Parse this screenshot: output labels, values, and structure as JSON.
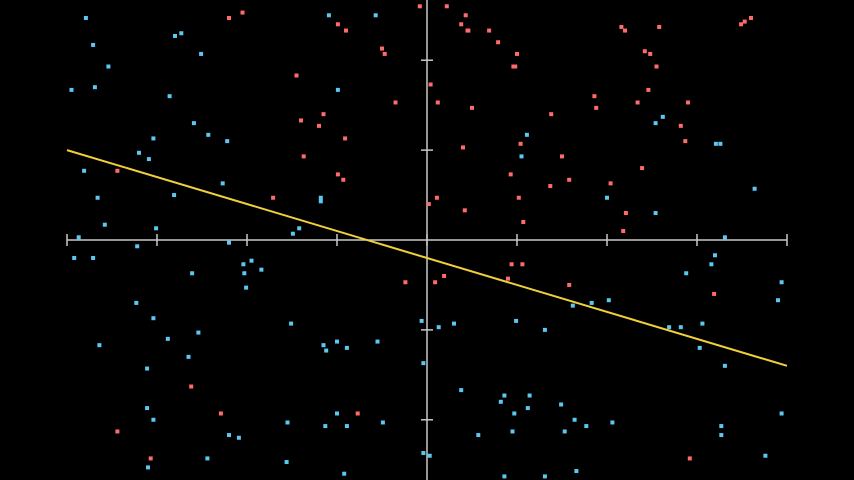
{
  "chart_data": {
    "type": "scatter",
    "xlim": [
      -4,
      4
    ],
    "ylim": [
      -2.67,
      2.67
    ],
    "x_ticks": [
      -4,
      -3,
      -2,
      -1,
      0,
      1,
      2,
      3,
      4
    ],
    "y_ticks": [
      -2,
      -1,
      1,
      2
    ],
    "grid": false,
    "colors": {
      "background": "#000000",
      "axis": "#c8c8c8",
      "class_a": "#ff6b6b",
      "class_b": "#5bc8f0",
      "line": "#f2d03b"
    },
    "decision_line": {
      "x": [
        -4.0,
        4.0
      ],
      "y": [
        1.0,
        -1.4
      ]
    },
    "series": [
      {
        "points": [
          [
            -2.2,
            2.47
          ],
          [
            -2.05,
            2.53
          ],
          [
            -0.99,
            2.4
          ],
          [
            -0.9,
            2.33
          ],
          [
            -0.5,
            2.13
          ],
          [
            -0.47,
            2.07
          ],
          [
            -0.08,
            2.6
          ],
          [
            0.22,
            2.6
          ],
          [
            0.43,
            2.5
          ],
          [
            0.46,
            2.33
          ],
          [
            0.38,
            2.4
          ],
          [
            0.45,
            2.33
          ],
          [
            0.69,
            2.33
          ],
          [
            0.79,
            2.2
          ],
          [
            1.0,
            2.07
          ],
          [
            0.98,
            1.93
          ],
          [
            0.96,
            1.93
          ],
          [
            2.16,
            2.37
          ],
          [
            2.2,
            2.33
          ],
          [
            2.58,
            2.37
          ],
          [
            2.48,
            2.07
          ],
          [
            2.42,
            2.1
          ],
          [
            2.55,
            1.93
          ],
          [
            2.46,
            1.67
          ],
          [
            2.34,
            1.53
          ],
          [
            3.6,
            2.47
          ],
          [
            3.53,
            2.43
          ],
          [
            3.49,
            2.4
          ],
          [
            -1.45,
            1.83
          ],
          [
            -0.35,
            1.53
          ],
          [
            0.04,
            1.73
          ],
          [
            0.12,
            1.53
          ],
          [
            0.5,
            1.47
          ],
          [
            1.38,
            1.4
          ],
          [
            1.88,
            1.47
          ],
          [
            1.86,
            1.6
          ],
          [
            2.9,
            1.53
          ],
          [
            2.82,
            1.27
          ],
          [
            2.87,
            1.1
          ],
          [
            -1.4,
            1.33
          ],
          [
            -1.2,
            1.27
          ],
          [
            -1.15,
            1.4
          ],
          [
            -0.91,
            1.13
          ],
          [
            0.4,
            1.03
          ],
          [
            1.04,
            1.07
          ],
          [
            1.5,
            0.93
          ],
          [
            -1.37,
            0.93
          ],
          [
            -0.93,
            0.67
          ],
          [
            -0.99,
            0.73
          ],
          [
            -1.71,
            0.47
          ],
          [
            -3.44,
            0.77
          ],
          [
            0.93,
            0.73
          ],
          [
            1.37,
            0.6
          ],
          [
            1.58,
            0.67
          ],
          [
            2.04,
            0.63
          ],
          [
            2.39,
            0.8
          ],
          [
            1.02,
            0.47
          ],
          [
            0.11,
            0.47
          ],
          [
            0.42,
            0.33
          ],
          [
            0.02,
            0.4
          ],
          [
            1.07,
            0.2
          ],
          [
            2.21,
            0.3
          ],
          [
            2.18,
            0.1
          ],
          [
            -0.24,
            -0.47
          ],
          [
            0.09,
            -0.47
          ],
          [
            0.19,
            -0.4
          ],
          [
            0.9,
            -0.43
          ],
          [
            0.94,
            -0.27
          ],
          [
            1.06,
            -0.27
          ],
          [
            1.58,
            -0.5
          ],
          [
            3.19,
            -0.6
          ],
          [
            -2.62,
            -1.63
          ],
          [
            -2.29,
            -1.93
          ],
          [
            -0.77,
            -1.93
          ],
          [
            -3.44,
            -2.13
          ],
          [
            -3.07,
            -2.43
          ],
          [
            2.92,
            -2.43
          ]
        ]
      },
      {
        "points": [
          [
            -3.79,
            2.47
          ],
          [
            -3.71,
            2.17
          ],
          [
            -3.54,
            1.93
          ],
          [
            -3.69,
            1.7
          ],
          [
            -3.95,
            1.67
          ],
          [
            -2.8,
            2.27
          ],
          [
            -2.73,
            2.3
          ],
          [
            -2.51,
            2.07
          ],
          [
            -1.09,
            2.5
          ],
          [
            -0.57,
            2.5
          ],
          [
            -0.99,
            1.67
          ],
          [
            -2.86,
            1.6
          ],
          [
            -2.59,
            1.3
          ],
          [
            -2.43,
            1.17
          ],
          [
            -2.22,
            1.1
          ],
          [
            -3.04,
            1.13
          ],
          [
            -3.2,
            0.97
          ],
          [
            -3.09,
            0.9
          ],
          [
            -3.81,
            0.77
          ],
          [
            -3.66,
            0.47
          ],
          [
            -2.81,
            0.5
          ],
          [
            -2.27,
            0.63
          ],
          [
            -3.58,
            0.17
          ],
          [
            -3.87,
            0.03
          ],
          [
            -3.01,
            0.13
          ],
          [
            -1.18,
            0.47
          ],
          [
            -1.18,
            0.43
          ],
          [
            -1.42,
            0.13
          ],
          [
            -1.49,
            0.07
          ],
          [
            -2.2,
            -0.03
          ],
          [
            -3.22,
            -0.07
          ],
          [
            -3.92,
            -0.2
          ],
          [
            -3.71,
            -0.2
          ],
          [
            -2.61,
            -0.37
          ],
          [
            -2.04,
            -0.27
          ],
          [
            -1.95,
            -0.23
          ],
          [
            -2.03,
            -0.37
          ],
          [
            -1.84,
            -0.33
          ],
          [
            -2.01,
            -0.53
          ],
          [
            -3.23,
            -0.7
          ],
          [
            -3.04,
            -0.87
          ],
          [
            -2.88,
            -1.1
          ],
          [
            -2.54,
            -1.03
          ],
          [
            -3.64,
            -1.17
          ],
          [
            -2.65,
            -1.3
          ],
          [
            -3.11,
            -1.43
          ],
          [
            -1.51,
            -0.93
          ],
          [
            -1.15,
            -1.17
          ],
          [
            -1.0,
            -1.13
          ],
          [
            -0.89,
            -1.2
          ],
          [
            -0.55,
            -1.13
          ],
          [
            -1.12,
            -1.23
          ],
          [
            -0.06,
            -0.9
          ],
          [
            0.13,
            -0.97
          ],
          [
            0.3,
            -0.93
          ],
          [
            0.99,
            -0.9
          ],
          [
            1.31,
            -1.0
          ],
          [
            1.62,
            -0.73
          ],
          [
            1.83,
            -0.7
          ],
          [
            2.02,
            -0.67
          ],
          [
            2.69,
            -0.97
          ],
          [
            2.82,
            -0.97
          ],
          [
            3.03,
            -1.2
          ],
          [
            3.06,
            -0.93
          ],
          [
            3.31,
            -1.4
          ],
          [
            3.16,
            -0.27
          ],
          [
            3.2,
            -0.17
          ],
          [
            2.88,
            -0.37
          ],
          [
            3.94,
            -0.47
          ],
          [
            3.9,
            -0.67
          ],
          [
            3.31,
            0.03
          ],
          [
            2.54,
            1.3
          ],
          [
            2.62,
            1.37
          ],
          [
            3.21,
            1.07
          ],
          [
            3.26,
            1.07
          ],
          [
            3.64,
            0.57
          ],
          [
            2.0,
            0.47
          ],
          [
            2.54,
            0.3
          ],
          [
            1.11,
            1.17
          ],
          [
            1.05,
            0.93
          ],
          [
            -0.04,
            -1.37
          ],
          [
            0.38,
            -1.67
          ],
          [
            0.82,
            -1.8
          ],
          [
            0.86,
            -1.73
          ],
          [
            1.14,
            -1.73
          ],
          [
            1.12,
            -1.87
          ],
          [
            0.97,
            -1.93
          ],
          [
            1.49,
            -1.83
          ],
          [
            0.57,
            -2.17
          ],
          [
            0.95,
            -2.13
          ],
          [
            1.64,
            -2.0
          ],
          [
            1.53,
            -2.13
          ],
          [
            1.77,
            -2.07
          ],
          [
            2.06,
            -2.03
          ],
          [
            -0.04,
            -2.37
          ],
          [
            0.03,
            -2.4
          ],
          [
            0.86,
            -2.63
          ],
          [
            1.31,
            -2.63
          ],
          [
            1.66,
            -2.57
          ],
          [
            3.27,
            -2.07
          ],
          [
            3.27,
            -2.17
          ],
          [
            3.94,
            -1.93
          ],
          [
            3.76,
            -2.4
          ],
          [
            -0.92,
            -2.6
          ],
          [
            -1.56,
            -2.47
          ],
          [
            -2.44,
            -2.43
          ],
          [
            -3.1,
            -2.53
          ],
          [
            -3.11,
            -1.87
          ],
          [
            -3.04,
            -2.0
          ],
          [
            -2.09,
            -2.2
          ],
          [
            -2.2,
            -2.17
          ],
          [
            -1.55,
            -2.03
          ],
          [
            -1.0,
            -1.93
          ],
          [
            -0.89,
            -2.07
          ],
          [
            -1.13,
            -2.07
          ],
          [
            -0.49,
            -2.03
          ]
        ]
      }
    ]
  }
}
